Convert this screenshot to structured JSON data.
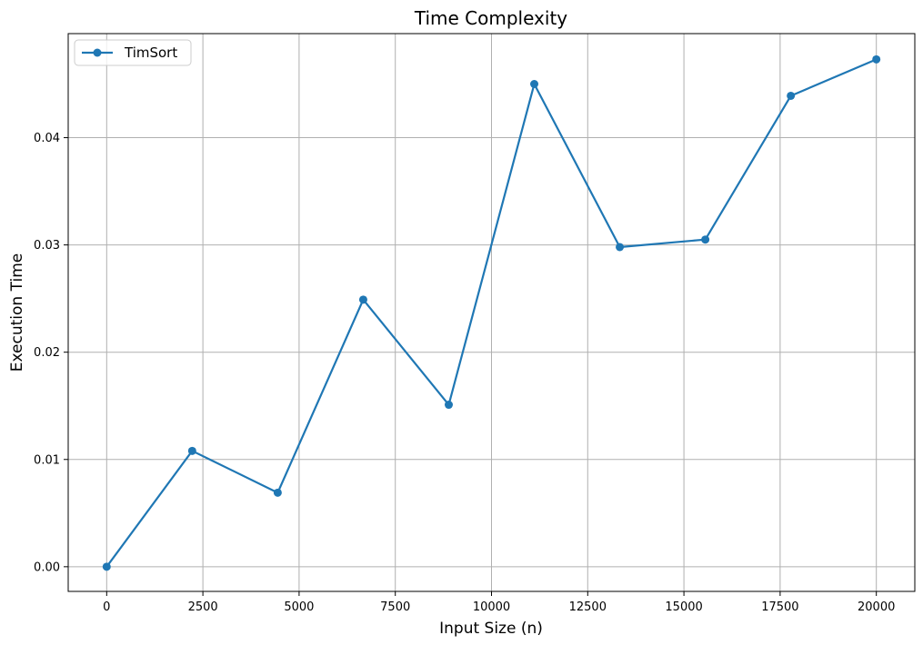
{
  "chart_data": {
    "type": "line",
    "title": "Time Complexity",
    "xlabel": "Input Size (n)",
    "ylabel": "Execution Time",
    "xlim": [
      -1000,
      21000
    ],
    "ylim": [
      -0.0023,
      0.0497
    ],
    "xticks": [
      0,
      2500,
      5000,
      7500,
      10000,
      12500,
      15000,
      17500,
      20000
    ],
    "xtick_labels": [
      "0",
      "2500",
      "5000",
      "7500",
      "10000",
      "12500",
      "15000",
      "17500",
      "20000"
    ],
    "yticks": [
      0.0,
      0.01,
      0.02,
      0.03,
      0.04
    ],
    "ytick_labels": [
      "0.00",
      "0.01",
      "0.02",
      "0.03",
      "0.04"
    ],
    "grid": true,
    "legend_position": "top-left",
    "series": [
      {
        "name": "TimSort",
        "color": "#1f77b4",
        "marker": "circle",
        "x": [
          0,
          2222,
          4444,
          6667,
          8889,
          11111,
          13333,
          15556,
          17778,
          20000
        ],
        "y": [
          0.0,
          0.0108,
          0.0069,
          0.0249,
          0.0151,
          0.045,
          0.0298,
          0.0305,
          0.0439,
          0.0473
        ]
      }
    ]
  }
}
